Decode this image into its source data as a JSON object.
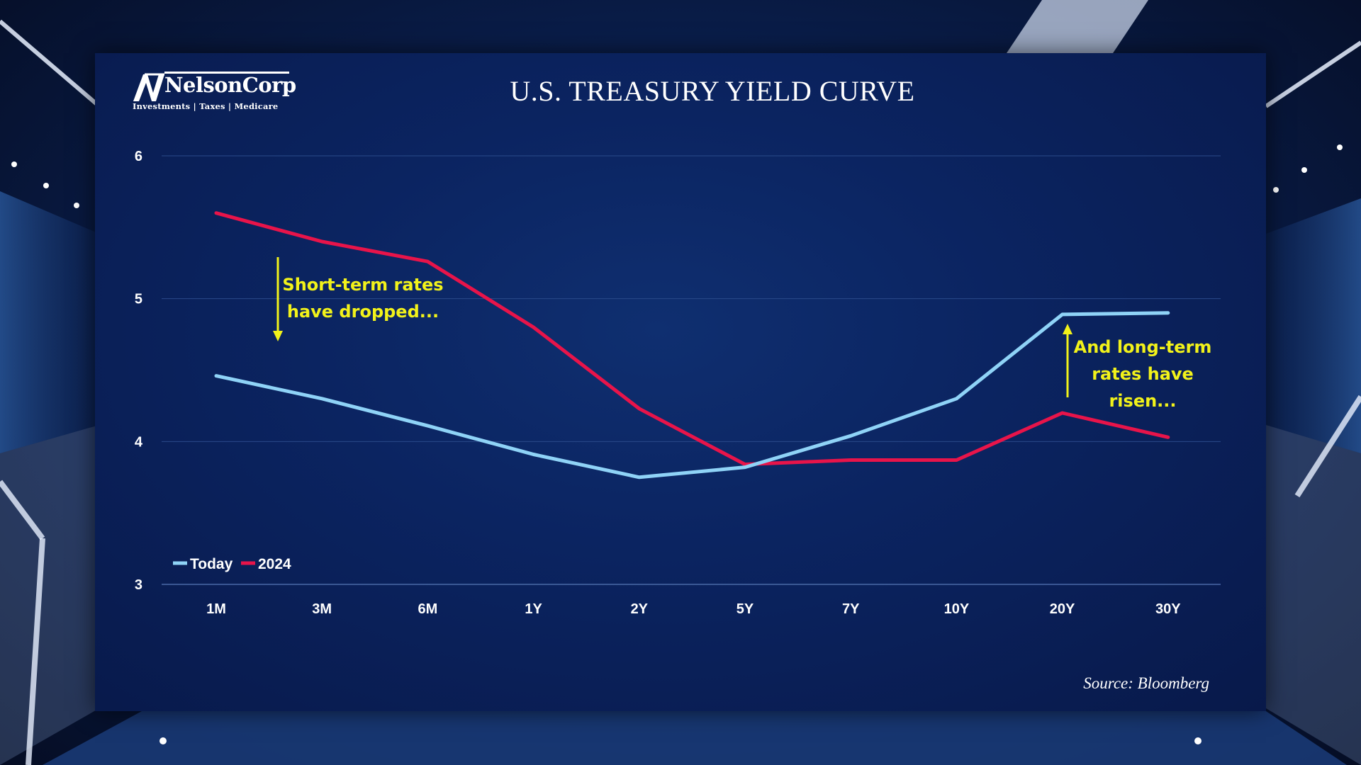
{
  "branding": {
    "logo_name": "NelsonCorp",
    "logo_tagline": "Investments | Taxes | Medicare"
  },
  "source": "Source: Bloomberg",
  "colors": {
    "today": "#8fd3f7",
    "y2024": "#e8144a",
    "annotation": "#f2f21a",
    "grid": "#2a4a8a"
  },
  "annotations": {
    "short_term": [
      "Short-term rates",
      "have dropped..."
    ],
    "long_term": [
      "And long-term",
      "rates have",
      "risen..."
    ]
  },
  "chart_data": {
    "type": "line",
    "title": "U.S. TREASURY YIELD CURVE",
    "xlabel": "",
    "ylabel": "",
    "categories": [
      "1M",
      "3M",
      "6M",
      "1Y",
      "2Y",
      "5Y",
      "7Y",
      "10Y",
      "20Y",
      "30Y"
    ],
    "ylim": [
      3,
      6
    ],
    "yticks": [
      3,
      4,
      5,
      6
    ],
    "grid": true,
    "legend_position": "bottom-left",
    "series": [
      {
        "name": "Today",
        "color": "#8fd3f7",
        "values": [
          4.46,
          4.3,
          4.11,
          3.91,
          3.75,
          3.82,
          4.04,
          4.3,
          4.89,
          4.9
        ]
      },
      {
        "name": "2024",
        "color": "#e8144a",
        "values": [
          5.6,
          5.4,
          5.26,
          4.8,
          4.23,
          3.84,
          3.87,
          3.87,
          4.2,
          4.03
        ]
      }
    ]
  }
}
